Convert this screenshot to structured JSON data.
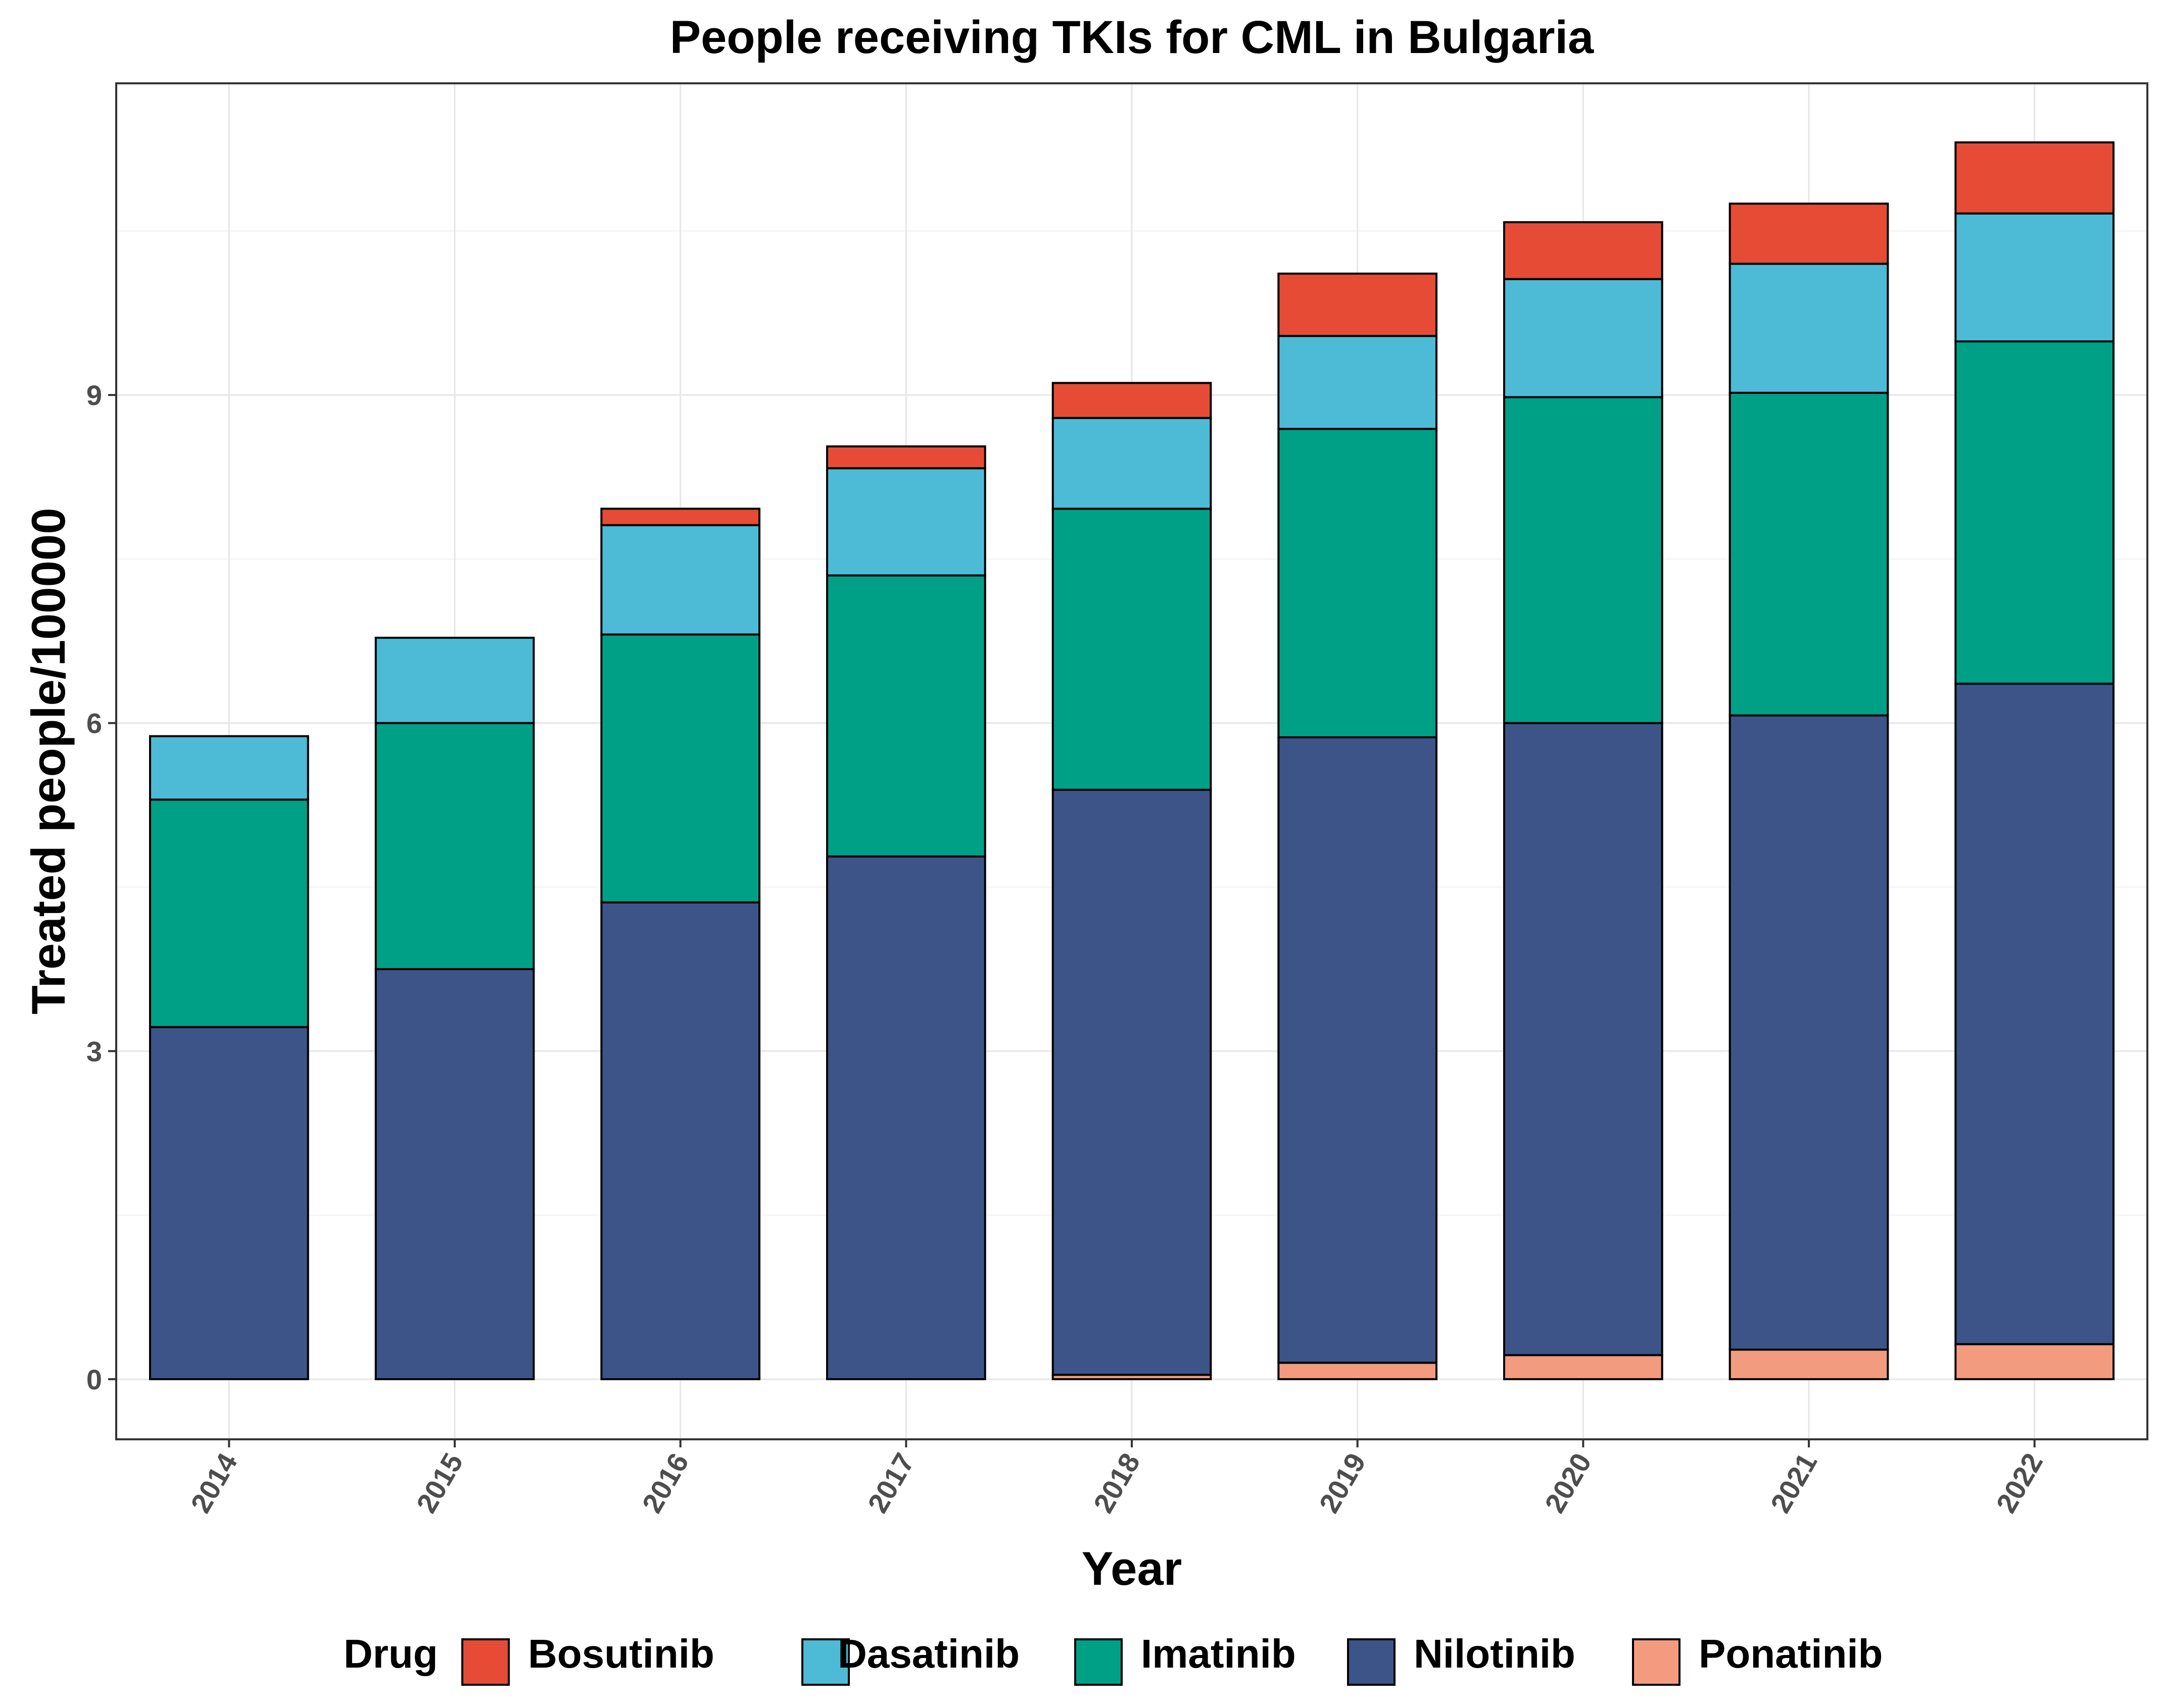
{
  "chart_data": {
    "type": "bar",
    "stacked": true,
    "title": "People receiving TKIs for CML in Bulgaria",
    "xlabel": "Year",
    "ylabel": "Treated people/100000",
    "ylim": [
      -0.55,
      11.85
    ],
    "y_ticks": [
      0,
      3,
      6,
      9
    ],
    "y_tick_labels": [
      "0",
      "3",
      "6",
      "9"
    ],
    "grid": true,
    "legend_title": "Drug",
    "legend_position": "bottom",
    "categories": [
      "2014",
      "2015",
      "2016",
      "2017",
      "2018",
      "2019",
      "2020",
      "2021",
      "2022"
    ],
    "stack_order": [
      "Ponatinib",
      "Nilotinib",
      "Imatinib",
      "Dasatinib",
      "Bosutinib"
    ],
    "legend_order": [
      "Bosutinib",
      "Dasatinib",
      "Imatinib",
      "Nilotinib",
      "Ponatinib"
    ],
    "series": [
      {
        "name": "Bosutinib",
        "color": "#E64B35",
        "values": [
          0,
          0,
          0.15,
          0.2,
          0.32,
          0.57,
          0.52,
          0.55,
          0.65
        ]
      },
      {
        "name": "Dasatinib",
        "color": "#4DBBD5",
        "values": [
          0.58,
          0.78,
          1.0,
          0.98,
          0.83,
          0.85,
          1.08,
          1.18,
          1.17
        ]
      },
      {
        "name": "Imatinib",
        "color": "#00A087",
        "values": [
          2.08,
          2.25,
          2.45,
          2.57,
          2.57,
          2.82,
          2.98,
          2.95,
          3.13
        ]
      },
      {
        "name": "Nilotinib",
        "color": "#3C5488",
        "values": [
          3.22,
          3.75,
          4.36,
          4.78,
          5.35,
          5.72,
          5.78,
          5.8,
          6.04
        ]
      },
      {
        "name": "Ponatinib",
        "color": "#F39B7F",
        "values": [
          0,
          0,
          0,
          0,
          0.04,
          0.15,
          0.22,
          0.27,
          0.32
        ]
      }
    ]
  }
}
